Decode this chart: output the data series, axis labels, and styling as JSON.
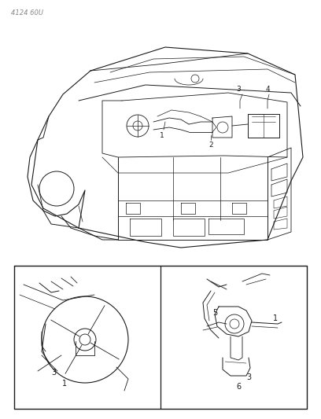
{
  "page_id": "4124 60U",
  "bg_color": "#ffffff",
  "line_color": "#1a1a1a",
  "fig_width": 4.08,
  "fig_height": 5.33,
  "dpi": 100,
  "label_fontsize": 6.5
}
